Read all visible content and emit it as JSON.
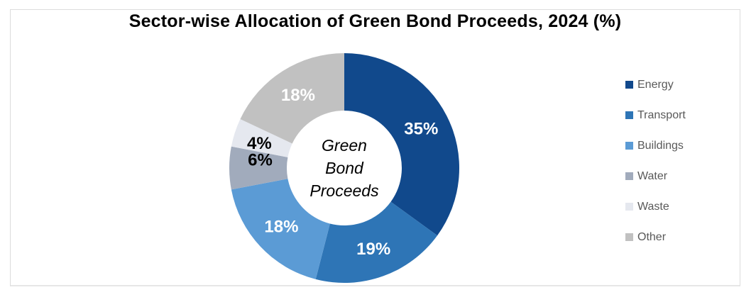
{
  "title": "Sector-wise Allocation of Green Bond Proceeds, 2024 (%)",
  "center_label": {
    "lines": [
      "Green",
      "Bond",
      "Proceeds"
    ],
    "text": "Green Bond Proceeds"
  },
  "chart_data": {
    "type": "pie",
    "subtype": "donut",
    "title": "Sector-wise Allocation of Green Bond Proceeds, 2024 (%)",
    "center_text": "Green Bond Proceeds",
    "categories": [
      "Energy",
      "Transport",
      "Buildings",
      "Water",
      "Waste",
      "Other"
    ],
    "values": [
      35,
      19,
      18,
      6,
      4,
      18
    ],
    "unit": "%",
    "data_labels": [
      "35%",
      "19%",
      "18%",
      "6%",
      "4%",
      "18%"
    ],
    "colors": [
      "#11498C",
      "#2E75B6",
      "#5B9BD5",
      "#A1ABBC",
      "#E5E8EF",
      "#C1C1C1"
    ],
    "label_text_colors": [
      "#FFFFFF",
      "#FFFFFF",
      "#FFFFFF",
      "#000000",
      "#000000",
      "#FFFFFF"
    ],
    "start_angle_deg": 0,
    "direction": "clockwise",
    "donut_hole_ratio": 0.5,
    "legend_position": "right",
    "grid": false
  },
  "legend": {
    "items": [
      {
        "label": "Energy",
        "color": "#11498C"
      },
      {
        "label": "Transport",
        "color": "#2E75B6"
      },
      {
        "label": "Buildings",
        "color": "#5B9BD5"
      },
      {
        "label": "Water",
        "color": "#A1ABBC"
      },
      {
        "label": "Waste",
        "color": "#E5E8EF"
      },
      {
        "label": "Other",
        "color": "#C1C1C1"
      }
    ],
    "text_color": "#595959"
  },
  "frame": {
    "border_color": "#DCDCDC",
    "background": "#FFFFFF"
  }
}
